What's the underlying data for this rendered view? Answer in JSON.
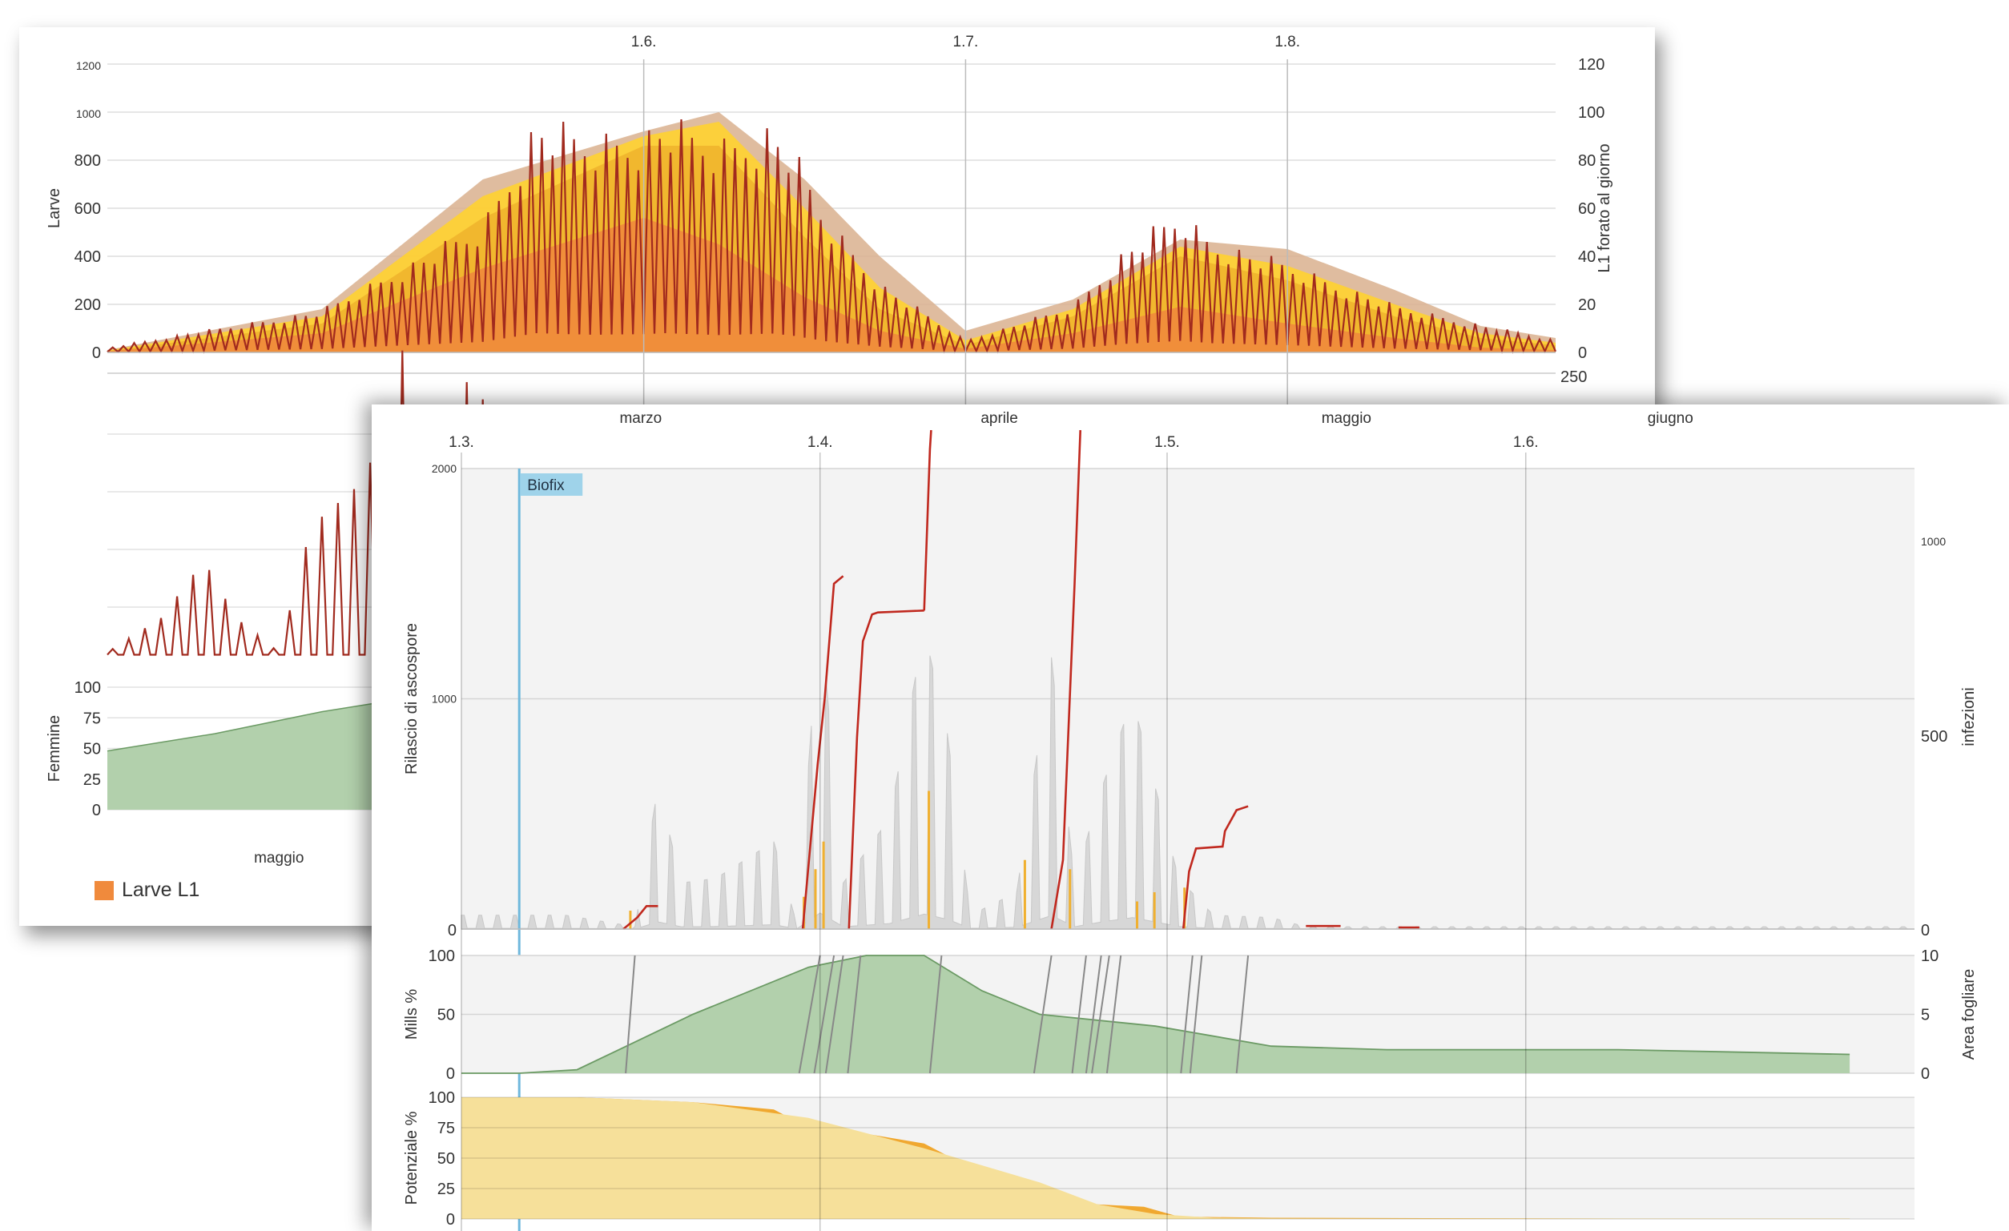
{
  "colors": {
    "larvae_outer": "#d9b08e",
    "larvae_yellow": "#ffd230",
    "larvae_amber": "#f0b42d",
    "larvae_orange": "#f08a3c",
    "l1_line": "#a12a1e",
    "green_fill": "#b2d0ac",
    "green_line": "#6b9a64",
    "grey_fill": "#d7d7d7",
    "release_bars": "#f0b030",
    "infection_line": "#c0281e",
    "biofix": "#6fb8dc",
    "potential_light": "#f6e09a",
    "potential_dark": "#f0a830"
  },
  "back_chart": {
    "date_ticks": [
      "1.6.",
      "1.7.",
      "1.8."
    ],
    "month_label": "maggio",
    "top_panel": {
      "ylabel_left": "Larve",
      "ylabel_right": "L1 forato al giorno",
      "left_ticks": [
        "1200",
        "1000",
        "800",
        "600",
        "400",
        "200",
        "0"
      ],
      "right_ticks": [
        "120",
        "100",
        "80",
        "60",
        "40",
        "20",
        "0"
      ]
    },
    "middle_panel": {
      "right_tick": "250"
    },
    "bottom_panel": {
      "ylabel": "Femmine",
      "ticks": [
        "100",
        "75",
        "50",
        "25",
        "0"
      ]
    },
    "legend": [
      {
        "label": "Larve L1",
        "color": "#f08a3c"
      }
    ]
  },
  "front_chart": {
    "months": [
      "marzo",
      "aprile",
      "maggio",
      "giugno"
    ],
    "date_ticks": [
      "1.3.",
      "1.4.",
      "1.5.",
      "1.6."
    ],
    "biofix_label": "Biofix",
    "main_panel": {
      "ylabel_left": "Rilascio di ascospore",
      "ylabel_right": "infezioni",
      "left_ticks": [
        "2000",
        "1000",
        "0"
      ],
      "right_ticks": [
        "1000",
        "500",
        "0"
      ]
    },
    "mills_panel": {
      "ylabel_left": "Mills %",
      "ylabel_right": "Area fogliare",
      "left_ticks": [
        "100",
        "50",
        "0"
      ],
      "right_ticks": [
        "10",
        "5",
        "0"
      ]
    },
    "potential_panel": {
      "ylabel": "Potenziale %",
      "ticks": [
        "100",
        "75",
        "50",
        "25",
        "0"
      ]
    }
  },
  "chart_data": [
    {
      "type": "area",
      "description_scope": "larvae population and daily L1 drillings",
      "x_unit": "day index from start of plot (1.6. = 50, 1.7. = 80, 1.8. = 110)",
      "ylim_left": [
        0,
        1200
      ],
      "ylim_right": [
        0,
        120
      ],
      "series": [
        {
          "name": "",
          "axis": "left",
          "x": [
            0,
            20,
            35,
            50,
            57,
            65,
            72,
            80,
            90,
            100,
            110,
            120,
            128,
            135
          ],
          "values": [
            10,
            180,
            720,
            920,
            1000,
            720,
            400,
            90,
            220,
            470,
            430,
            260,
            110,
            60
          ]
        },
        {
          "name": "",
          "axis": "left",
          "x": [
            0,
            20,
            35,
            50,
            57,
            65,
            72,
            80,
            90,
            100,
            110,
            120,
            128,
            135
          ],
          "values": [
            8,
            150,
            650,
            900,
            960,
            600,
            270,
            50,
            180,
            440,
            360,
            200,
            80,
            40
          ]
        },
        {
          "name": "",
          "axis": "left",
          "x": [
            0,
            20,
            35,
            50,
            57,
            65,
            72,
            80,
            90,
            100,
            110,
            120,
            128,
            135
          ],
          "values": [
            6,
            120,
            560,
            860,
            860,
            480,
            180,
            30,
            150,
            400,
            300,
            150,
            60,
            30
          ]
        },
        {
          "name": "Larve L1",
          "axis": "left",
          "x": [
            0,
            20,
            35,
            50,
            57,
            65,
            72,
            80,
            90,
            100,
            110,
            120,
            128,
            135
          ],
          "values": [
            5,
            80,
            350,
            560,
            450,
            230,
            90,
            15,
            80,
            190,
            120,
            60,
            20,
            10
          ]
        },
        {
          "name": "",
          "axis": "right",
          "x": [
            0,
            20,
            35,
            40,
            45,
            50,
            52,
            57,
            62,
            64,
            67,
            72,
            80,
            90,
            95,
            100,
            103,
            110,
            120,
            135
          ],
          "values": [
            2,
            18,
            55,
            100,
            92,
            95,
            100,
            90,
            98,
            86,
            58,
            30,
            5,
            20,
            45,
            60,
            48,
            38,
            20,
            5
          ]
        }
      ]
    },
    {
      "type": "line",
      "description_scope": "back chart middle panel (partially hidden)",
      "x_unit": "day index",
      "ylim": [
        0,
        250
      ],
      "series": [
        {
          "name": "",
          "x": [
            0,
            5,
            9,
            12,
            16,
            19,
            24,
            26,
            28,
            30,
            33,
            35,
            38,
            40,
            43,
            45,
            48,
            50
          ],
          "values": [
            10,
            40,
            90,
            40,
            10,
            120,
            160,
            220,
            290,
            160,
            250,
            230,
            160,
            220,
            150,
            90,
            60,
            40
          ]
        }
      ]
    },
    {
      "type": "area",
      "description_scope": "back chart Femmine panel (partially hidden)",
      "x_unit": "day index",
      "ylim": [
        0,
        100
      ],
      "series": [
        {
          "name": "",
          "x": [
            0,
            10,
            20,
            30,
            40,
            50
          ],
          "values": [
            48,
            62,
            80,
            94,
            100,
            100
          ]
        }
      ]
    },
    {
      "type": "line",
      "description_scope": "front chart ascospore release and infections",
      "x_unit": "day of year (1.3. = 0, 1.4. = 31, 1.5. = 61, 1.6. = 92)",
      "ylim_left": [
        0,
        2000
      ],
      "ylim_right": [
        0,
        1200
      ],
      "series": [
        {
          "name": "",
          "axis": "left",
          "x": [
            9,
            15,
            17,
            19,
            22,
            27,
            29,
            31,
            33,
            37,
            40,
            42,
            44,
            48,
            51,
            53,
            55,
            58,
            62,
            65,
            70,
            73
          ],
          "values": [
            60,
            10,
            620,
            200,
            220,
            380,
            20,
            1400,
            200,
            480,
            1300,
            850,
            60,
            160,
            1180,
            200,
            560,
            1000,
            220,
            60,
            50,
            10
          ]
        },
        {
          "name": "",
          "axis": "right",
          "x": [
            14,
            16,
            17,
            31,
            32,
            33,
            40,
            41,
            57,
            58,
            59,
            61,
            64,
            66,
            68,
            73,
            75,
            81,
            83
          ],
          "values": [
            0,
            60,
            60,
            1010,
            1010,
            820,
            820,
            1200,
            1200,
            1200,
            1200,
            210,
            210,
            320,
            320,
            10,
            10,
            5,
            5
          ]
        }
      ]
    },
    {
      "type": "area",
      "description_scope": "front chart Mills % and leaf area",
      "x_unit": "day of year",
      "ylim_left": [
        0,
        100
      ],
      "ylim_right": [
        0,
        10
      ],
      "series": [
        {
          "name": "",
          "axis": "right",
          "x": [
            0,
            5,
            10,
            20,
            30,
            35,
            40,
            45,
            50,
            60,
            70,
            80,
            100,
            120
          ],
          "values": [
            0,
            0,
            0.3,
            5,
            9,
            10,
            10,
            7,
            5,
            4,
            2.3,
            2,
            2,
            1.6
          ]
        }
      ]
    },
    {
      "type": "area",
      "description_scope": "front chart Potenziale %",
      "x_unit": "day of year",
      "ylim": [
        0,
        100
      ],
      "series": [
        {
          "name": "",
          "x": [
            0,
            10,
            20,
            30,
            40,
            50,
            55,
            60,
            65,
            70,
            80,
            100,
            120
          ],
          "values": [
            100,
            100,
            96,
            83,
            58,
            30,
            12,
            4,
            1,
            0.5,
            0.3,
            0.3,
            0.3
          ]
        },
        {
          "name": "",
          "x": [
            0,
            10,
            20,
            27,
            29,
            35,
            40,
            45,
            48,
            55,
            59,
            62,
            70,
            100,
            120
          ],
          "values": [
            100,
            100,
            96,
            90,
            80,
            70,
            62,
            37,
            22,
            12,
            10,
            2,
            1,
            0.3,
            0.3
          ]
        }
      ]
    }
  ]
}
